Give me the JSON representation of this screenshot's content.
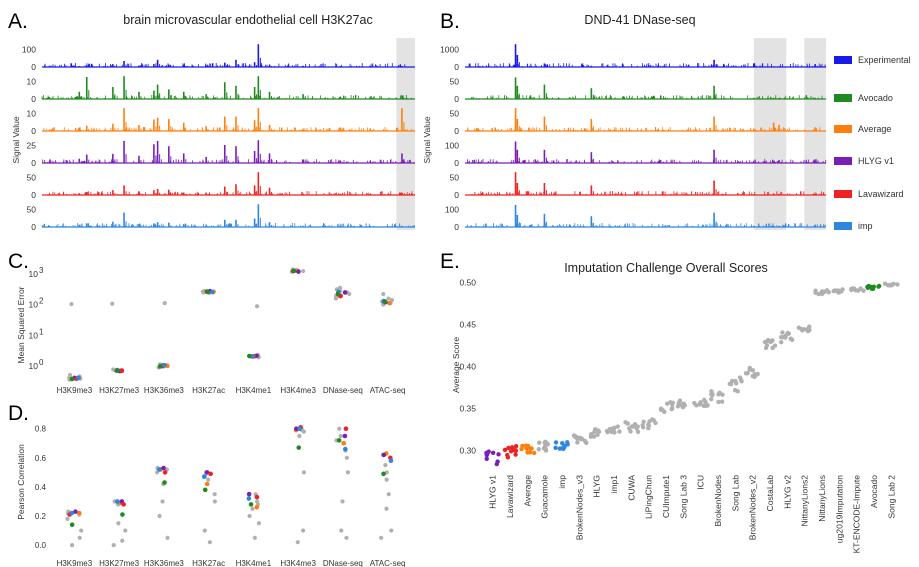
{
  "figure": {
    "colors": {
      "Experimental": "#1a1ae6",
      "Avocado": "#1f8a1f",
      "Average": "#ff7f0e",
      "HLYG v1": "#7a1fb5",
      "Lavawizard": "#ee2222",
      "imp": "#2e86de",
      "other": "#b0b0b0"
    }
  },
  "chart_data": [
    {
      "panel": "A.",
      "type": "line",
      "title": "brain microvascular endothelial cell H3K27ac",
      "ylabel": "Signal Value",
      "tracks": [
        {
          "name": "Experimental",
          "ticks": [
            "100",
            "0"
          ],
          "ylim": [
            0,
            160
          ]
        },
        {
          "name": "Avocado",
          "ticks": [
            "10",
            "0"
          ],
          "ylim": [
            0,
            14
          ]
        },
        {
          "name": "Average",
          "ticks": [
            "10",
            "0"
          ],
          "ylim": [
            0,
            14
          ]
        },
        {
          "name": "HLYG v1",
          "ticks": [
            "25",
            "0"
          ],
          "ylim": [
            0,
            32
          ]
        },
        {
          "name": "Lavawizard",
          "ticks": [
            "50",
            "0"
          ],
          "ylim": [
            0,
            70
          ]
        },
        {
          "name": "imp",
          "ticks": [
            "50",
            "0"
          ],
          "ylim": [
            0,
            70
          ]
        }
      ],
      "peaks": [
        {
          "x": 0.02,
          "h": [
            0.05,
            0.08,
            0.06,
            0.06,
            0.04,
            0.05
          ]
        },
        {
          "x": 0.1,
          "h": [
            0.04,
            0.3,
            0.12,
            0.18,
            0.08,
            0.1
          ]
        },
        {
          "x": 0.12,
          "h": [
            0.05,
            0.92,
            0.22,
            0.35,
            0.12,
            0.15
          ]
        },
        {
          "x": 0.19,
          "h": [
            0.12,
            0.5,
            0.3,
            0.38,
            0.2,
            0.22
          ]
        },
        {
          "x": 0.22,
          "h": [
            0.25,
            0.95,
            0.95,
            0.92,
            0.4,
            0.6
          ]
        },
        {
          "x": 0.26,
          "h": [
            0.06,
            0.3,
            0.25,
            0.3,
            0.15,
            0.12
          ]
        },
        {
          "x": 0.3,
          "h": [
            0.12,
            0.35,
            0.48,
            0.78,
            0.2,
            0.15
          ]
        },
        {
          "x": 0.31,
          "h": [
            0.3,
            0.6,
            0.55,
            0.92,
            0.25,
            0.2
          ]
        },
        {
          "x": 0.34,
          "h": [
            0.1,
            0.4,
            0.5,
            0.7,
            0.22,
            0.18
          ]
        },
        {
          "x": 0.38,
          "h": [
            0.1,
            0.3,
            0.35,
            0.4,
            0.1,
            0.1
          ]
        },
        {
          "x": 0.44,
          "h": [
            0.05,
            0.2,
            0.2,
            0.25,
            0.1,
            0.1
          ]
        },
        {
          "x": 0.49,
          "h": [
            0.18,
            0.7,
            0.6,
            0.75,
            0.35,
            0.3
          ]
        },
        {
          "x": 0.52,
          "h": [
            0.3,
            0.55,
            0.6,
            0.7,
            0.45,
            0.3
          ]
        },
        {
          "x": 0.57,
          "h": [
            0.2,
            0.5,
            0.45,
            0.5,
            0.4,
            0.35
          ]
        },
        {
          "x": 0.58,
          "h": [
            0.95,
            0.95,
            0.95,
            0.95,
            0.95,
            0.95
          ]
        },
        {
          "x": 0.61,
          "h": [
            0.1,
            0.3,
            0.25,
            0.4,
            0.3,
            0.2
          ]
        },
        {
          "x": 0.7,
          "h": [
            0.05,
            0.2,
            0.1,
            0.15,
            0.05,
            0.05
          ]
        },
        {
          "x": 0.8,
          "h": [
            0.04,
            0.1,
            0.15,
            0.1,
            0.05,
            0.05
          ]
        },
        {
          "x": 0.88,
          "h": [
            0.05,
            0.1,
            0.1,
            0.08,
            0.05,
            0.05
          ]
        },
        {
          "x": 0.965,
          "h": [
            0.04,
            0.15,
            0.95,
            0.4,
            0.1,
            0.05
          ]
        }
      ],
      "highlight": [
        [
          0.95,
          1.0
        ]
      ]
    },
    {
      "panel": "B.",
      "type": "line",
      "title": "DND-41 DNase-seq",
      "ylabel": "Signal Value",
      "tracks": [
        {
          "name": "Experimental",
          "ticks": [
            "1000",
            "0"
          ],
          "ylim": [
            0,
            1300
          ]
        },
        {
          "name": "Avocado",
          "ticks": [
            "50",
            "0"
          ],
          "ylim": [
            0,
            65
          ]
        },
        {
          "name": "Average",
          "ticks": [
            "50",
            "0"
          ],
          "ylim": [
            0,
            65
          ]
        },
        {
          "name": "HLYG v1",
          "ticks": [
            "100",
            "0"
          ],
          "ylim": [
            0,
            160
          ]
        },
        {
          "name": "Lavawizard",
          "ticks": [
            "50",
            "0"
          ],
          "ylim": [
            0,
            65
          ]
        },
        {
          "name": "imp",
          "ticks": [
            "100",
            "0"
          ],
          "ylim": [
            0,
            150
          ]
        }
      ],
      "peaks": [
        {
          "x": 0.04,
          "h": [
            0.03,
            0.03,
            0.05,
            0.04,
            0.03,
            0.03
          ]
        },
        {
          "x": 0.14,
          "h": [
            0.95,
            0.9,
            0.95,
            0.9,
            0.95,
            0.92
          ]
        },
        {
          "x": 0.145,
          "h": [
            0.5,
            0.55,
            0.5,
            0.55,
            0.5,
            0.5
          ]
        },
        {
          "x": 0.22,
          "h": [
            0.15,
            0.6,
            0.6,
            0.55,
            0.5,
            0.55
          ]
        },
        {
          "x": 0.35,
          "h": [
            0.05,
            0.45,
            0.5,
            0.45,
            0.4,
            0.45
          ]
        },
        {
          "x": 0.4,
          "h": [
            0.03,
            0.05,
            0.05,
            0.05,
            0.03,
            0.03
          ]
        },
        {
          "x": 0.55,
          "h": [
            0.03,
            0.05,
            0.05,
            0.05,
            0.03,
            0.03
          ]
        },
        {
          "x": 0.69,
          "h": [
            0.3,
            0.55,
            0.6,
            0.55,
            0.6,
            0.6
          ]
        },
        {
          "x": 0.8,
          "h": [
            0.1,
            0.05,
            0.1,
            0.08,
            0.03,
            0.05
          ]
        },
        {
          "x": 0.855,
          "h": [
            0.03,
            0.05,
            0.35,
            0.1,
            0.05,
            0.05
          ]
        },
        {
          "x": 0.87,
          "h": [
            0.03,
            0.05,
            0.25,
            0.12,
            0.05,
            0.05
          ]
        },
        {
          "x": 0.97,
          "h": [
            0.12,
            0.05,
            0.15,
            0.15,
            0.05,
            0.05
          ]
        }
      ],
      "highlight": [
        [
          0.8,
          0.89
        ],
        [
          0.94,
          1.0
        ]
      ]
    },
    {
      "panel": "C.",
      "type": "scatter",
      "ylabel": "Mean Squared Error",
      "yscale": "log",
      "ylim_exp": [
        -0.3,
        3.2
      ],
      "yticks": [
        {
          "base": "10",
          "exp": "0",
          "v": 0
        },
        {
          "base": "10",
          "exp": "1",
          "v": 1
        },
        {
          "base": "10",
          "exp": "2",
          "v": 2
        },
        {
          "base": "10",
          "exp": "3",
          "v": 3
        }
      ],
      "categories": [
        "H3K9me3",
        "H3K27me3",
        "H3K36me3",
        "H3K27ac",
        "H3K4me1",
        "H3K4me3",
        "DNase-seq",
        "ATAC-seq"
      ],
      "points": [
        {
          "cat": 0,
          "gray": [
            -0.45,
            -0.38,
            -0.42,
            -0.4,
            2.02,
            -0.35,
            -0.3
          ],
          "avocado": -0.43,
          "average": -0.41,
          "hlyg": -0.4,
          "lava": -0.42,
          "imp": -0.39
        },
        {
          "cat": 1,
          "gray": [
            -0.14,
            -0.18,
            -0.16,
            2.03,
            -0.12
          ],
          "avocado": -0.16,
          "average": -0.15,
          "hlyg": -0.17,
          "lava": -0.16,
          "imp": -0.14
        },
        {
          "cat": 2,
          "gray": [
            -0.05,
            0.02,
            2.05,
            -0.02,
            0.05
          ],
          "avocado": -0.02,
          "average": 0.0,
          "hlyg": 0.01,
          "lava": -0.01,
          "imp": 0.02
        },
        {
          "cat": 3,
          "gray": [
            2.38,
            2.42,
            2.45,
            2.4,
            2.43
          ],
          "avocado": 2.42,
          "average": 2.41,
          "hlyg": 2.44,
          "lava": 2.43,
          "imp": 2.42
        },
        {
          "cat": 4,
          "gray": [
            0.3,
            0.32,
            0.35,
            0.28,
            1.95
          ],
          "avocado": 0.32,
          "average": 0.3,
          "hlyg": 0.33,
          "lava": 0.31,
          "imp": 0.31
        },
        {
          "cat": 5,
          "gray": [
            3.1,
            3.12,
            3.15,
            3.08,
            3.1
          ],
          "avocado": 3.1,
          "average": 3.12,
          "hlyg": 3.08,
          "lava": 3.1,
          "imp": 3.11
        },
        {
          "cat": 6,
          "gray": [
            2.3,
            2.4,
            2.5,
            2.45,
            2.2,
            2.35,
            2.55,
            2.28
          ],
          "avocado": 2.35,
          "average": 2.3,
          "hlyg": 2.4,
          "lava": 2.28,
          "imp": 2.42
        },
        {
          "cat": 7,
          "gray": [
            2.0,
            2.1,
            2.2,
            2.35,
            2.05,
            2.15
          ],
          "avocado": 2.1,
          "average": 2.05,
          "hlyg": 2.08,
          "lava": 2.1,
          "imp": 2.12
        }
      ]
    },
    {
      "panel": "D.",
      "type": "scatter",
      "ylabel": "Pearson Correlation",
      "ylim": [
        -0.02,
        0.86
      ],
      "yticks": [
        "0.0",
        "0.2",
        "0.4",
        "0.6",
        "0.8"
      ],
      "categories": [
        "H3K9me3",
        "H3K27me3",
        "H3K36me3",
        "H3K27ac",
        "H3K4me1",
        "H3K4me3",
        "DNase-seq",
        "ATAC-seq"
      ],
      "points": [
        {
          "cat": 0,
          "gray": [
            0.22,
            0.21,
            0.18,
            0.05,
            0.0,
            0.1,
            0.23
          ],
          "avocado": 0.14,
          "average": 0.22,
          "hlyg": 0.23,
          "lava": 0.21,
          "imp": 0.22
        },
        {
          "cat": 1,
          "gray": [
            0.3,
            0.29,
            0.28,
            0.1,
            0.0,
            0.15,
            0.03
          ],
          "avocado": 0.21,
          "average": 0.29,
          "hlyg": 0.3,
          "lava": 0.28,
          "imp": 0.3
        },
        {
          "cat": 2,
          "gray": [
            0.53,
            0.52,
            0.5,
            0.3,
            0.2,
            0.05,
            0.42
          ],
          "avocado": 0.43,
          "average": 0.52,
          "hlyg": 0.53,
          "lava": 0.5,
          "imp": 0.52
        },
        {
          "cat": 3,
          "gray": [
            0.5,
            0.48,
            0.45,
            0.3,
            0.1,
            0.02,
            0.35
          ],
          "avocado": 0.38,
          "average": 0.42,
          "hlyg": 0.5,
          "lava": 0.49,
          "imp": 0.47
        },
        {
          "cat": 4,
          "gray": [
            0.35,
            0.3,
            0.25,
            0.2,
            0.15,
            0.05,
            0.28
          ],
          "avocado": 0.28,
          "average": 0.26,
          "hlyg": 0.35,
          "lava": 0.33,
          "imp": 0.32
        },
        {
          "cat": 5,
          "gray": [
            0.8,
            0.78,
            0.75,
            0.5,
            0.1,
            0.02,
            0.79
          ],
          "avocado": 0.67,
          "average": 0.79,
          "hlyg": 0.8,
          "lava": 0.81,
          "imp": 0.8
        },
        {
          "cat": 6,
          "gray": [
            0.8,
            0.75,
            0.7,
            0.65,
            0.6,
            0.5,
            0.3,
            0.1,
            0.05,
            0.72
          ],
          "avocado": 0.72,
          "average": 0.7,
          "hlyg": 0.75,
          "lava": 0.8,
          "imp": 0.66
        },
        {
          "cat": 7,
          "gray": [
            0.62,
            0.55,
            0.45,
            0.35,
            0.1,
            0.05,
            0.25,
            0.5
          ],
          "avocado": 0.49,
          "average": 0.63,
          "hlyg": 0.62,
          "lava": 0.6,
          "imp": 0.58
        }
      ]
    },
    {
      "panel": "E.",
      "type": "scatter",
      "title": "Imputation  Challenge Overall Scores",
      "ylabel": "Average Score",
      "ylim": [
        0.283,
        0.503
      ],
      "yticks": [
        "0.30",
        "0.35",
        "0.40",
        "0.45",
        "0.50"
      ],
      "categories": [
        "HLYG v1",
        "Lavawizard",
        "Average",
        "Guacamole",
        "imp",
        "BrokenNodes_v3",
        "HLYG",
        "imp1",
        "CUWA",
        "LiPingChun",
        "CUImpute1",
        "Song Lab 3",
        "ICU",
        "BrokenNodes",
        "Song Lab",
        "BrokenNodes_v2",
        "CostaLab",
        "HLYG v2",
        "NittanyLions2",
        "NittanyLions",
        "ug2019Imputation",
        "KT-ENCODE-Impute",
        "Avocado",
        "Song Lab 2"
      ],
      "colored": {
        "HLYG v1": "#7a1fb5",
        "Lavawizard": "#ee2222",
        "Average": "#ff7f0e",
        "imp": "#2e86de",
        "Avocado": "#1f8a1f"
      },
      "centers": [
        0.292,
        0.301,
        0.302,
        0.305,
        0.306,
        0.313,
        0.322,
        0.325,
        0.328,
        0.332,
        0.353,
        0.355,
        0.357,
        0.365,
        0.378,
        0.393,
        0.43,
        0.435,
        0.445,
        0.488,
        0.49,
        0.492,
        0.494,
        0.498
      ],
      "spread": [
        0.008,
        0.009,
        0.005,
        0.006,
        0.004,
        0.006,
        0.006,
        0.005,
        0.006,
        0.007,
        0.007,
        0.005,
        0.005,
        0.007,
        0.009,
        0.006,
        0.008,
        0.006,
        0.003,
        0.003,
        0.002,
        0.002,
        0.002,
        0.002
      ]
    }
  ]
}
